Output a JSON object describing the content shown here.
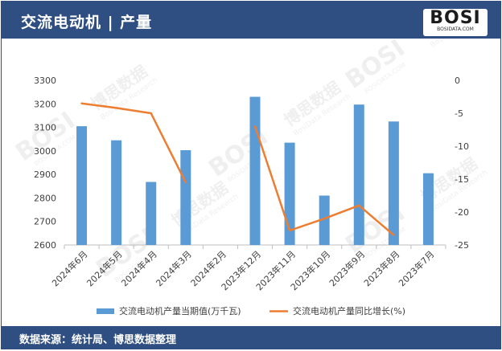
{
  "header": {
    "title": "交流电动机 | 产量",
    "logo": "BOSI",
    "logo_sub": "BOSIDATA.COM"
  },
  "footer": {
    "source": "数据来源：统计局、博思数据整理"
  },
  "watermark": {
    "text": "博思数据",
    "sub": "BosiData Research",
    "site": "BOSIDATA.COM"
  },
  "colors": {
    "bar": "#5b9bd5",
    "line": "#ed7d31",
    "header_bg": "#2f4f82"
  },
  "chart_data": {
    "type": "bar",
    "categories": [
      "2024年6月",
      "2024年5月",
      "2024年4月",
      "2024年3月",
      "2024年2月",
      "2023年12月",
      "2023年11月",
      "2023年10月",
      "2023年9月",
      "2023年8月",
      "2023年7月"
    ],
    "series": [
      {
        "name": "交流电动机产量当期值(万千瓦)",
        "type": "bar",
        "axis": "left",
        "values": [
          3105,
          3045,
          2868,
          3003,
          null,
          3230,
          3035,
          2810,
          3197,
          3125,
          2905
        ]
      },
      {
        "name": "交流电动机产量同比增长(%)",
        "type": "line",
        "axis": "right",
        "values": [
          -3.5,
          -4.2,
          -5.0,
          -15.5,
          null,
          -7.0,
          -22.8,
          -21.0,
          -19.0,
          -23.5,
          null
        ]
      }
    ],
    "y_left": {
      "min": 2600,
      "max": 3300,
      "ticks": [
        2600,
        2700,
        2800,
        2900,
        3000,
        3100,
        3200,
        3300
      ]
    },
    "y_right": {
      "min": -25,
      "max": 0,
      "ticks": [
        0,
        -5,
        -10,
        -15,
        -20,
        -25
      ]
    },
    "legend": "bottom",
    "grid": false
  }
}
